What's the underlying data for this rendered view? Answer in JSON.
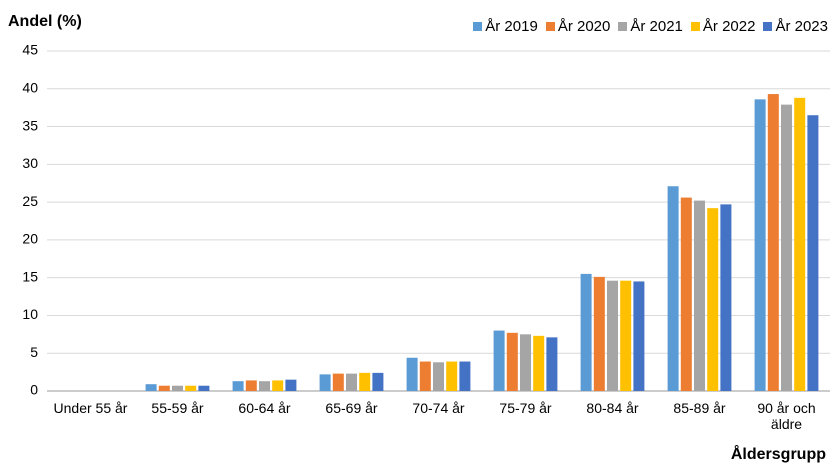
{
  "chart_data": {
    "type": "bar",
    "y_label": "Andel (%)",
    "x_label": "Åldersgrupp",
    "categories": [
      "Under 55 år",
      "55-59 år",
      "60-64 år",
      "65-69 år",
      "70-74 år",
      "75-79 år",
      "80-84 år",
      "85-89 år",
      "90 år och äldre"
    ],
    "series": [
      {
        "name": "År 2019",
        "color": "#5b9bd5",
        "values": [
          0,
          0.9,
          1.3,
          2.2,
          4.4,
          8.0,
          15.5,
          27.1,
          38.6
        ]
      },
      {
        "name": "År 2020",
        "color": "#ed7d31",
        "values": [
          0,
          0.7,
          1.4,
          2.3,
          3.9,
          7.7,
          15.1,
          25.6,
          39.3
        ]
      },
      {
        "name": "År 2021",
        "color": "#a5a5a5",
        "values": [
          0,
          0.7,
          1.3,
          2.3,
          3.8,
          7.5,
          14.6,
          25.2,
          37.9
        ]
      },
      {
        "name": "År 2022",
        "color": "#ffc000",
        "values": [
          0,
          0.7,
          1.4,
          2.4,
          3.9,
          7.3,
          14.6,
          24.2,
          38.8
        ]
      },
      {
        "name": "År 2023",
        "color": "#4472c4",
        "values": [
          0,
          0.7,
          1.5,
          2.4,
          3.9,
          7.1,
          14.5,
          24.7,
          36.5
        ]
      }
    ],
    "ylim": [
      0,
      45
    ],
    "yticks": [
      0,
      5,
      10,
      15,
      20,
      25,
      30,
      35,
      40,
      45
    ],
    "grid": true
  }
}
